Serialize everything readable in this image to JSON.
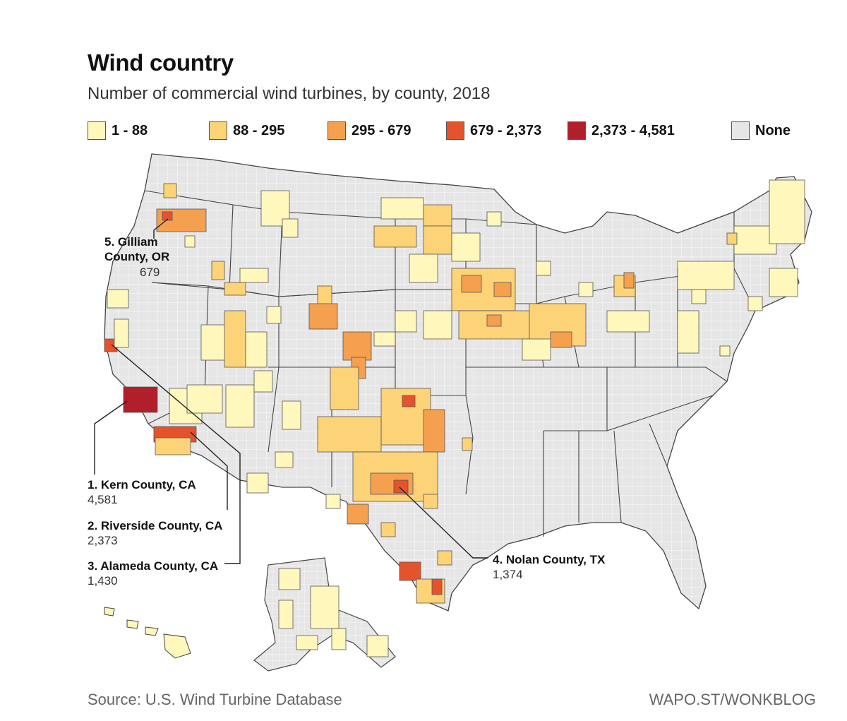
{
  "header": {
    "title": "Wind country",
    "subtitle": "Number of commercial wind turbines, by county, 2018"
  },
  "legend": [
    {
      "label": "1 - 88",
      "color": "#fff7bc"
    },
    {
      "label": "88 - 295",
      "color": "#fdd378"
    },
    {
      "label": "295 - 679",
      "color": "#f5a04f"
    },
    {
      "label": "679 - 2,373",
      "color": "#e5532d"
    },
    {
      "label": "2,373 - 4,581",
      "color": "#b01f2a"
    },
    {
      "label": "None",
      "color": "#e6e6e6"
    }
  ],
  "annotations": [
    {
      "rank_name": "1. Kern County, CA",
      "value": "4,581"
    },
    {
      "rank_name": "2. Riverside County, CA",
      "value": "2,373"
    },
    {
      "rank_name": "3. Alameda County, CA",
      "value": "1,430"
    },
    {
      "rank_name": "4. Nolan County, TX",
      "value": "1,374"
    },
    {
      "rank_name_line1": "5. Gilliam",
      "rank_name_line2": "County, OR",
      "value": "679"
    }
  ],
  "footer": {
    "source": "Source: U.S. Wind Turbine Database",
    "credit": "WAPO.ST/WONKBLOG"
  }
}
